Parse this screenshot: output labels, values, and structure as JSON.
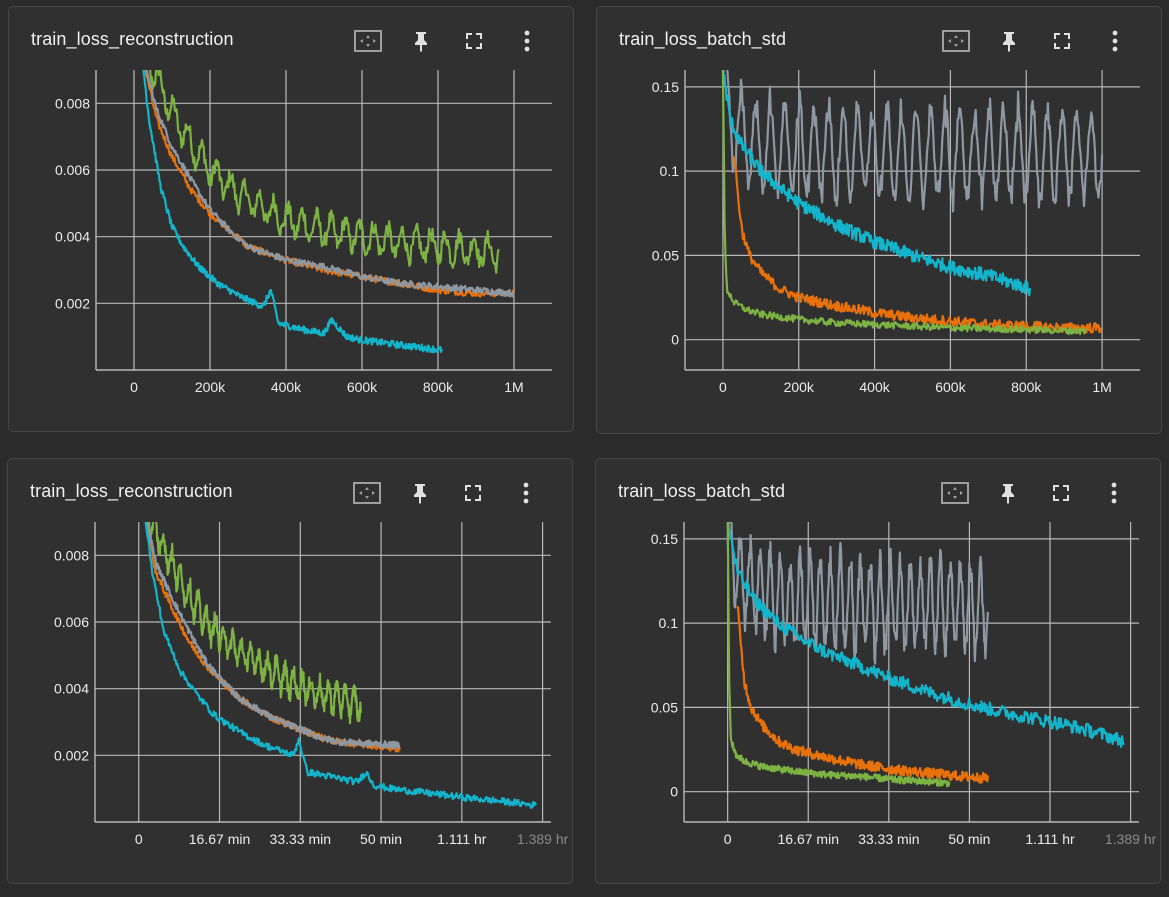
{
  "colors": {
    "background": "#2b2b2b",
    "card": "#303030",
    "grid": "#b8b8b8",
    "series_cyan": "#12b5cb",
    "series_orange": "#e8710a",
    "series_gray": "#8e98a3",
    "series_green": "#7cb342"
  },
  "toolbar_icons": [
    "fit-domain-icon",
    "pin-icon",
    "fullscreen-icon",
    "more-vert-icon"
  ],
  "cards": [
    {
      "title": "train_loss_reconstruction"
    },
    {
      "title": "train_loss_batch_std"
    },
    {
      "title": "train_loss_reconstruction"
    },
    {
      "title": "train_loss_batch_std"
    }
  ],
  "chart_data": [
    {
      "type": "line",
      "title": "train_loss_reconstruction",
      "x_axis": "step",
      "xlim": [
        -100000,
        1100000
      ],
      "ylim": [
        0.0,
        0.009
      ],
      "x_ticks": [
        0,
        200000,
        400000,
        600000,
        800000,
        1000000
      ],
      "x_tick_labels": [
        "0",
        "200k",
        "400k",
        "600k",
        "800k",
        "1M"
      ],
      "y_ticks": [
        0.002,
        0.004,
        0.006,
        0.008
      ],
      "y_tick_labels": [
        "0.002",
        "0.004",
        "0.006",
        "0.008"
      ],
      "series": [
        {
          "color": "#7cb342",
          "x": [
            20000,
            60000,
            100000,
            150000,
            200000,
            250000,
            300000,
            400000,
            500000,
            600000,
            700000,
            800000,
            900000,
            960000
          ],
          "y": [
            0.0095,
            0.0088,
            0.0077,
            0.0068,
            0.006,
            0.0055,
            0.0051,
            0.0045,
            0.0042,
            0.004,
            0.0038,
            0.0037,
            0.0036,
            0.0035
          ],
          "noise": 0.00025,
          "period": 25
        },
        {
          "color": "#e8710a",
          "x": [
            20000,
            60000,
            100000,
            150000,
            200000,
            250000,
            300000,
            400000,
            500000,
            600000,
            700000,
            800000,
            900000,
            1000000
          ],
          "y": [
            0.0095,
            0.0075,
            0.0064,
            0.0054,
            0.0047,
            0.0042,
            0.0037,
            0.0033,
            0.003,
            0.0028,
            0.0026,
            0.0024,
            0.0023,
            0.0023
          ],
          "noise": 0.0001,
          "period": 0
        },
        {
          "color": "#8e98a3",
          "x": [
            20000,
            60000,
            100000,
            150000,
            200000,
            250000,
            300000,
            400000,
            500000,
            600000,
            700000,
            800000,
            900000,
            1000000
          ],
          "y": [
            0.0095,
            0.0078,
            0.0067,
            0.0057,
            0.0048,
            0.0042,
            0.0037,
            0.0033,
            0.0031,
            0.0028,
            0.0026,
            0.0025,
            0.0024,
            0.0023
          ],
          "noise": 0.0001,
          "period": 0
        },
        {
          "color": "#12b5cb",
          "x": [
            20000,
            40000,
            70000,
            100000,
            130000,
            170000,
            220000,
            280000,
            340000,
            360000,
            380000,
            450000,
            500000,
            520000,
            560000,
            600000,
            700000,
            810000
          ],
          "y": [
            0.0095,
            0.0075,
            0.0055,
            0.0043,
            0.0037,
            0.0031,
            0.0026,
            0.0022,
            0.0019,
            0.0024,
            0.0014,
            0.0012,
            0.0011,
            0.0015,
            0.001,
            0.0009,
            0.00075,
            0.0006
          ],
          "noise": 0.0001,
          "period": 0
        }
      ]
    },
    {
      "type": "line",
      "title": "train_loss_batch_std",
      "x_axis": "step",
      "xlim": [
        -100000,
        1100000
      ],
      "ylim": [
        -0.018,
        0.16
      ],
      "x_ticks": [
        0,
        200000,
        400000,
        600000,
        800000,
        1000000
      ],
      "x_tick_labels": [
        "0",
        "200k",
        "400k",
        "600k",
        "800k",
        "1M"
      ],
      "y_ticks": [
        0,
        0.05,
        0.1,
        0.15
      ],
      "y_tick_labels": [
        "0",
        "0.05",
        "0.1",
        "0.15"
      ],
      "series": [
        {
          "color": "#8e98a3",
          "x": [
            0,
            20000,
            60000,
            100000,
            300000,
            600000,
            1000000
          ],
          "y": [
            0.15,
            0.13,
            0.12,
            0.115,
            0.112,
            0.11,
            0.11
          ],
          "noise": 0.004,
          "period": 26,
          "amp": 0.028
        },
        {
          "color": "#12b5cb",
          "x": [
            0,
            20000,
            50000,
            100000,
            150000,
            200000,
            300000,
            400000,
            500000,
            600000,
            700000,
            800000,
            810000
          ],
          "y": [
            0.16,
            0.13,
            0.115,
            0.1,
            0.09,
            0.081,
            0.068,
            0.058,
            0.05,
            0.043,
            0.038,
            0.031,
            0.029
          ],
          "noise": 0.004,
          "period": 0
        },
        {
          "color": "#e8710a",
          "x": [
            30000,
            40000,
            50000,
            70000,
            100000,
            150000,
            200000,
            300000,
            400000,
            500000,
            600000,
            700000,
            800000,
            900000,
            1000000
          ],
          "y": [
            0.11,
            0.085,
            0.065,
            0.05,
            0.04,
            0.03,
            0.025,
            0.02,
            0.016,
            0.013,
            0.011,
            0.009,
            0.008,
            0.007,
            0.007
          ],
          "noise": 0.003,
          "period": 0
        },
        {
          "color": "#7cb342",
          "x": [
            0,
            5000,
            10000,
            30000,
            60000,
            100000,
            200000,
            300000,
            400000,
            600000,
            800000,
            960000
          ],
          "y": [
            0.16,
            0.06,
            0.03,
            0.022,
            0.018,
            0.015,
            0.012,
            0.01,
            0.009,
            0.007,
            0.006,
            0.005
          ],
          "noise": 0.002,
          "period": 0
        }
      ]
    },
    {
      "type": "line",
      "title": "train_loss_reconstruction",
      "x_axis": "relative time",
      "xlim": [
        -2.6,
        24.5
      ],
      "ylim": [
        0.0,
        0.009
      ],
      "x_ticks": [
        0,
        4.8,
        9.6,
        14.4,
        19.2,
        24.0
      ],
      "x_tick_labels": [
        "0",
        "16.67 min",
        "33.33 min",
        "50 min",
        "1.111 hr",
        "1.389 hr"
      ],
      "y_ticks": [
        0.002,
        0.004,
        0.006,
        0.008
      ],
      "y_tick_labels": [
        "0.002",
        "0.004",
        "0.006",
        "0.008"
      ],
      "series": [
        {
          "color": "#7cb342",
          "x": [
            0.3,
            1.0,
            2.0,
            3.0,
            4.0,
            5.0,
            6.0,
            7.0,
            8.0,
            9.0,
            10.0,
            11.0,
            12.0,
            13.2
          ],
          "y": [
            0.0095,
            0.0088,
            0.0077,
            0.0068,
            0.006,
            0.0055,
            0.0051,
            0.0048,
            0.0045,
            0.0042,
            0.004,
            0.0038,
            0.0037,
            0.0035
          ],
          "noise": 0.00025,
          "period": 25
        },
        {
          "color": "#e8710a",
          "x": [
            0.3,
            1.0,
            2.0,
            3.0,
            4.0,
            5.0,
            6.0,
            7.0,
            8.0,
            9.0,
            10.0,
            11.0,
            12.0,
            15.5
          ],
          "y": [
            0.0095,
            0.0075,
            0.0064,
            0.0054,
            0.0047,
            0.0042,
            0.0037,
            0.0034,
            0.0031,
            0.0029,
            0.0027,
            0.0025,
            0.0024,
            0.0022
          ],
          "noise": 0.0001,
          "period": 0
        },
        {
          "color": "#8e98a3",
          "x": [
            0.3,
            1.0,
            2.0,
            3.0,
            4.0,
            5.0,
            6.0,
            7.0,
            8.0,
            9.0,
            10.0,
            11.0,
            12.0,
            15.5
          ],
          "y": [
            0.0095,
            0.0078,
            0.0067,
            0.0057,
            0.0048,
            0.0042,
            0.0037,
            0.0034,
            0.0031,
            0.0029,
            0.0027,
            0.0025,
            0.0024,
            0.0023
          ],
          "noise": 0.0001,
          "period": 0
        },
        {
          "color": "#12b5cb",
          "x": [
            0.3,
            0.8,
            1.5,
            2.5,
            3.5,
            4.5,
            6.0,
            7.5,
            9.2,
            9.5,
            10.0,
            12.0,
            13.0,
            13.5,
            14.0,
            15.0,
            17.5,
            20.0,
            22.0,
            23.6
          ],
          "y": [
            0.0095,
            0.0075,
            0.0057,
            0.0045,
            0.0038,
            0.0032,
            0.0027,
            0.0023,
            0.002,
            0.0025,
            0.0015,
            0.0013,
            0.0012,
            0.0015,
            0.0011,
            0.001,
            0.00085,
            0.0007,
            0.0006,
            0.0005
          ],
          "noise": 0.0001,
          "period": 0
        }
      ]
    },
    {
      "type": "line",
      "title": "train_loss_batch_std",
      "x_axis": "relative time",
      "xlim": [
        -2.6,
        24.5
      ],
      "ylim": [
        -0.018,
        0.16
      ],
      "x_ticks": [
        0,
        4.8,
        9.6,
        14.4,
        19.2,
        24.0
      ],
      "x_tick_labels": [
        "0",
        "16.67 min",
        "33.33 min",
        "50 min",
        "1.111 hr",
        "1.389 hr"
      ],
      "y_ticks": [
        0,
        0.05,
        0.1,
        0.15
      ],
      "y_tick_labels": [
        "0",
        "0.05",
        "0.1",
        "0.15"
      ],
      "series": [
        {
          "color": "#8e98a3",
          "x": [
            0,
            0.6,
            1.5,
            3.0,
            6.0,
            10.0,
            15.5
          ],
          "y": [
            0.15,
            0.13,
            0.12,
            0.115,
            0.112,
            0.11,
            0.11
          ],
          "noise": 0.004,
          "period": 26,
          "amp": 0.028
        },
        {
          "color": "#12b5cb",
          "x": [
            0,
            0.6,
            1.5,
            3.0,
            4.5,
            6.0,
            8.0,
            10.0,
            12.0,
            14.0,
            16.0,
            18.0,
            20.0,
            22.0,
            23.6
          ],
          "y": [
            0.16,
            0.13,
            0.115,
            0.1,
            0.09,
            0.082,
            0.074,
            0.066,
            0.059,
            0.053,
            0.048,
            0.044,
            0.04,
            0.035,
            0.03
          ],
          "noise": 0.004,
          "period": 0
        },
        {
          "color": "#e8710a",
          "x": [
            0.6,
            0.8,
            1.0,
            1.4,
            2.0,
            3.0,
            4.0,
            6.0,
            8.0,
            10.0,
            12.0,
            14.0,
            15.5
          ],
          "y": [
            0.11,
            0.085,
            0.065,
            0.05,
            0.04,
            0.03,
            0.025,
            0.02,
            0.016,
            0.013,
            0.011,
            0.009,
            0.008
          ],
          "noise": 0.003,
          "period": 0
        },
        {
          "color": "#7cb342",
          "x": [
            0,
            0.1,
            0.2,
            0.5,
            1.0,
            2.0,
            4.0,
            6.0,
            8.0,
            10.0,
            12.0,
            13.2
          ],
          "y": [
            0.16,
            0.06,
            0.03,
            0.022,
            0.018,
            0.015,
            0.012,
            0.01,
            0.009,
            0.007,
            0.006,
            0.005
          ],
          "noise": 0.002,
          "period": 0
        }
      ]
    }
  ]
}
